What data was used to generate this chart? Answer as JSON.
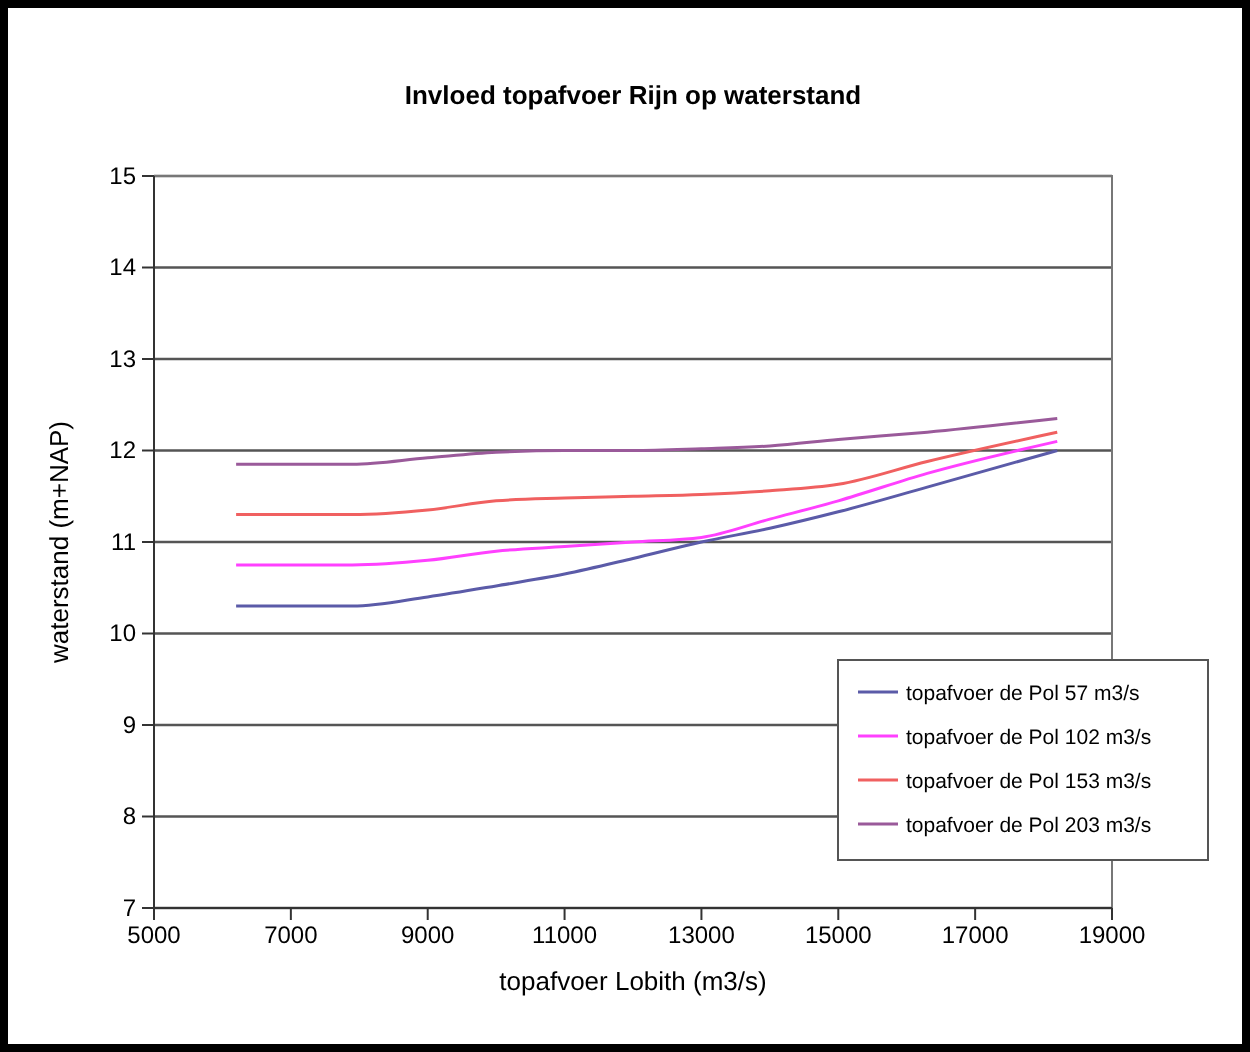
{
  "chart_data": {
    "type": "line",
    "title": "Invloed topafvoer Rijn op waterstand",
    "xlabel": "topafvoer Lobith (m3/s)",
    "ylabel": "waterstand (m+NAP)",
    "x": [
      6200,
      7900,
      9000,
      10000,
      11000,
      12000,
      13000,
      14000,
      15000,
      16300,
      18200
    ],
    "series": [
      {
        "name": "topafvoer de Pol 57 m3/s",
        "color": "#5b5ba8",
        "values": [
          10.3,
          10.3,
          10.4,
          10.52,
          10.65,
          10.82,
          11.0,
          11.15,
          11.33,
          11.6,
          12.0
        ]
      },
      {
        "name": "topafvoer de Pol 102 m3/s",
        "color": "#ff40ff",
        "values": [
          10.75,
          10.75,
          10.8,
          10.9,
          10.95,
          11.0,
          11.05,
          11.25,
          11.45,
          11.75,
          12.1
        ]
      },
      {
        "name": "topafvoer de Pol 153 m3/s",
        "color": "#f06060",
        "values": [
          11.3,
          11.3,
          11.35,
          11.45,
          11.48,
          11.5,
          11.52,
          11.56,
          11.63,
          11.88,
          12.2
        ]
      },
      {
        "name": "topafvoer de Pol 203 m3/s",
        "color": "#9a5a9a",
        "values": [
          11.85,
          11.85,
          11.92,
          11.98,
          12.0,
          12.0,
          12.02,
          12.05,
          12.12,
          12.2,
          12.35
        ]
      }
    ],
    "xlim": [
      5000,
      19000
    ],
    "xticks": [
      5000,
      7000,
      9000,
      11000,
      13000,
      15000,
      17000,
      19000
    ],
    "ylim": [
      7,
      15
    ],
    "yticks": [
      7,
      8,
      9,
      10,
      11,
      12,
      13,
      14,
      15
    ],
    "grid": "y",
    "legend": "bottom right",
    "marker": "none",
    "line_style": "solid"
  }
}
